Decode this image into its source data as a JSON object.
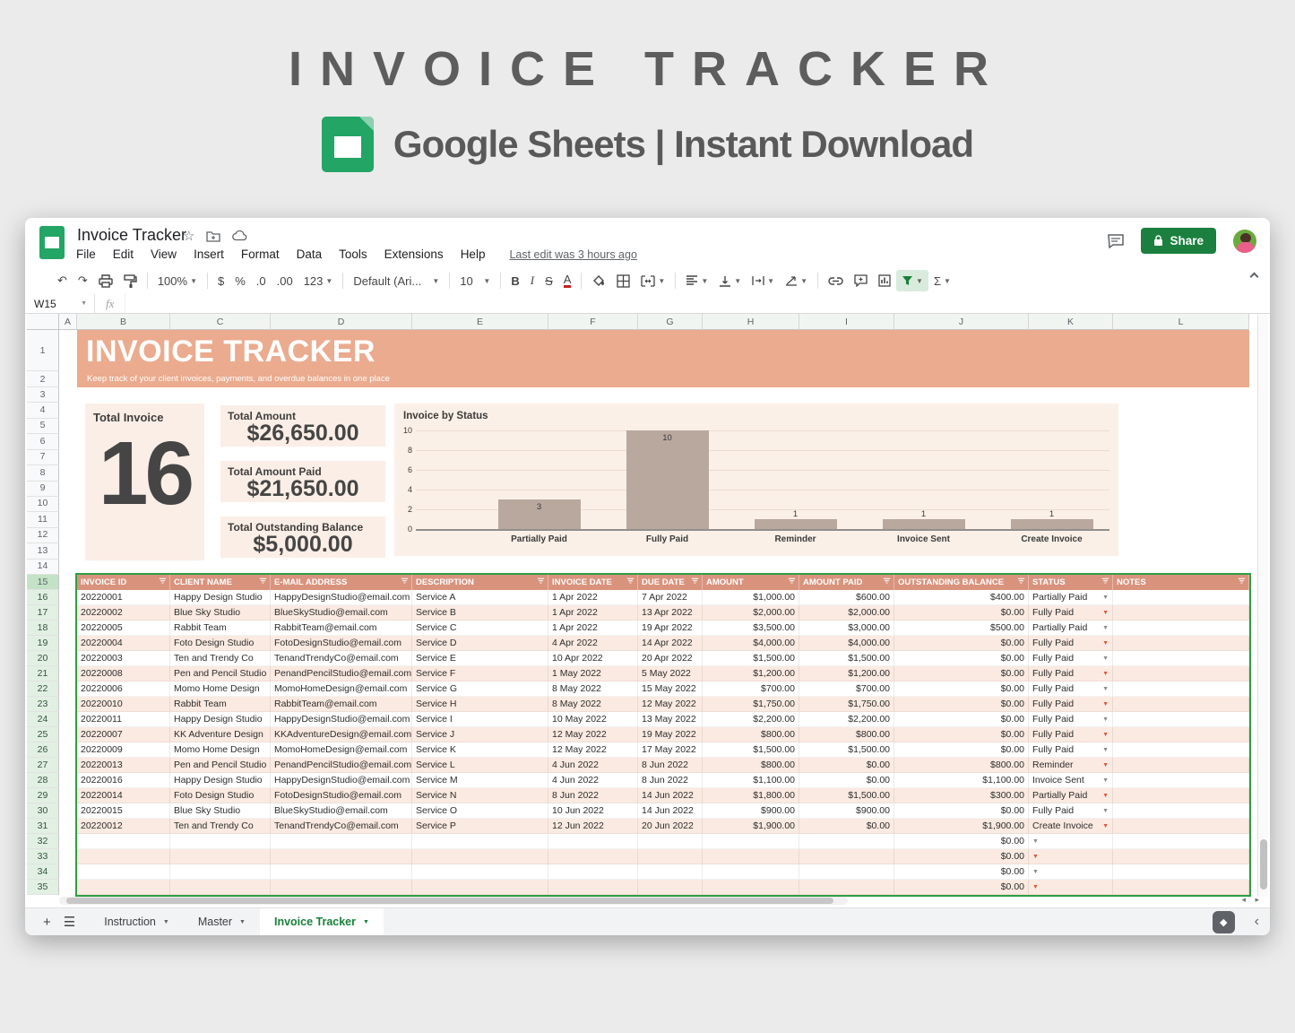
{
  "page_header": {
    "title": "INVOICE TRACKER",
    "subtitle": "Google Sheets | Instant Download"
  },
  "colors": {
    "banner_salmon": "#ebab8e",
    "table_header_salmon": "#d9937d",
    "row_stripe_peach": "#fbeae1",
    "panel_peach": "#fbeee6",
    "bar_taupe": "#b9a89e",
    "share_green": "#1b803f",
    "sheets_green": "#23a566",
    "active_tab_green": "#188038",
    "range_border_green": "#2f9e44",
    "stripe_arrow_orange": "#d9593d"
  },
  "window": {
    "doc_title": "Invoice Tracker",
    "menu_items": [
      "File",
      "Edit",
      "View",
      "Insert",
      "Format",
      "Data",
      "Tools",
      "Extensions",
      "Help"
    ],
    "last_edit": "Last edit was 3 hours ago",
    "share_label": "Share",
    "toolbar": {
      "zoom": "100%",
      "currency": "$",
      "percent": "%",
      "decrease_decimal": ".0",
      "increase_decimal": ".00",
      "more_formats": "123",
      "font": "Default (Ari...",
      "font_size": "10",
      "bold": "B",
      "italic": "I",
      "strikethrough": "S",
      "text_color": "A",
      "sum": "Σ"
    },
    "formula_bar": {
      "cell_ref": "W15",
      "fx_label": "fx"
    }
  },
  "sheet": {
    "column_letters": [
      "A",
      "B",
      "C",
      "D",
      "E",
      "F",
      "G",
      "H",
      "I",
      "J",
      "K",
      "L"
    ],
    "row_numbers": {
      "first": 1,
      "last": 35
    },
    "banner": {
      "title": "INVOICE TRACKER",
      "subtitle": "Keep track of your client invoices, payments, and overdue balances in one place"
    },
    "summary": {
      "total_invoice_label": "Total Invoice",
      "total_invoice_value": "16",
      "cards": [
        {
          "label": "Total Amount",
          "value": "$26,650.00"
        },
        {
          "label": "Total Amount Paid",
          "value": "$21,650.00"
        },
        {
          "label": "Total Outstanding Balance",
          "value": "$5,000.00"
        }
      ]
    },
    "table": {
      "headers": [
        "INVOICE ID",
        "CLIENT NAME",
        "E-MAIL ADDRESS",
        "DESCRIPTION",
        "INVOICE DATE",
        "DUE DATE",
        "AMOUNT",
        "AMOUNT PAID",
        "OUTSTANDING BALANCE",
        "STATUS",
        "NOTES"
      ],
      "rows": [
        {
          "id": "20220001",
          "client": "Happy Design Studio",
          "email": "HappyDesignStudio@email.com",
          "desc": "Service A",
          "invoice_date": "1 Apr 2022",
          "due_date": "7 Apr 2022",
          "amount": "$1,000.00",
          "paid": "$600.00",
          "balance": "$400.00",
          "status": "Partially Paid",
          "notes": ""
        },
        {
          "id": "20220002",
          "client": "Blue Sky Studio",
          "email": "BlueSkyStudio@email.com",
          "desc": "Service B",
          "invoice_date": "1 Apr 2022",
          "due_date": "13 Apr 2022",
          "amount": "$2,000.00",
          "paid": "$2,000.00",
          "balance": "$0.00",
          "status": "Fully Paid",
          "notes": ""
        },
        {
          "id": "20220005",
          "client": "Rabbit Team",
          "email": "RabbitTeam@email.com",
          "desc": "Service C",
          "invoice_date": "1 Apr 2022",
          "due_date": "19 Apr 2022",
          "amount": "$3,500.00",
          "paid": "$3,000.00",
          "balance": "$500.00",
          "status": "Partially Paid",
          "notes": ""
        },
        {
          "id": "20220004",
          "client": "Foto Design Studio",
          "email": "FotoDesignStudio@email.com",
          "desc": "Service D",
          "invoice_date": "4 Apr 2022",
          "due_date": "14 Apr 2022",
          "amount": "$4,000.00",
          "paid": "$4,000.00",
          "balance": "$0.00",
          "status": "Fully Paid",
          "notes": ""
        },
        {
          "id": "20220003",
          "client": "Ten and Trendy Co",
          "email": "TenandTrendyCo@email.com",
          "desc": "Service E",
          "invoice_date": "10 Apr 2022",
          "due_date": "20 Apr 2022",
          "amount": "$1,500.00",
          "paid": "$1,500.00",
          "balance": "$0.00",
          "status": "Fully Paid",
          "notes": ""
        },
        {
          "id": "20220008",
          "client": "Pen and Pencil Studio",
          "email": "PenandPencilStudio@email.com",
          "desc": "Service F",
          "invoice_date": "1 May 2022",
          "due_date": "5 May 2022",
          "amount": "$1,200.00",
          "paid": "$1,200.00",
          "balance": "$0.00",
          "status": "Fully Paid",
          "notes": ""
        },
        {
          "id": "20220006",
          "client": "Momo Home Design",
          "email": "MomoHomeDesign@email.com",
          "desc": "Service G",
          "invoice_date": "8 May 2022",
          "due_date": "15 May 2022",
          "amount": "$700.00",
          "paid": "$700.00",
          "balance": "$0.00",
          "status": "Fully Paid",
          "notes": ""
        },
        {
          "id": "20220010",
          "client": "Rabbit Team",
          "email": "RabbitTeam@email.com",
          "desc": "Service H",
          "invoice_date": "8 May 2022",
          "due_date": "12 May 2022",
          "amount": "$1,750.00",
          "paid": "$1,750.00",
          "balance": "$0.00",
          "status": "Fully Paid",
          "notes": ""
        },
        {
          "id": "20220011",
          "client": "Happy Design Studio",
          "email": "HappyDesignStudio@email.com",
          "desc": "Service I",
          "invoice_date": "10 May 2022",
          "due_date": "13 May 2022",
          "amount": "$2,200.00",
          "paid": "$2,200.00",
          "balance": "$0.00",
          "status": "Fully Paid",
          "notes": ""
        },
        {
          "id": "20220007",
          "client": "KK Adventure Design",
          "email": "KKAdventureDesign@email.com",
          "desc": "Service J",
          "invoice_date": "12 May 2022",
          "due_date": "19 May 2022",
          "amount": "$800.00",
          "paid": "$800.00",
          "balance": "$0.00",
          "status": "Fully Paid",
          "notes": ""
        },
        {
          "id": "20220009",
          "client": "Momo Home Design",
          "email": "MomoHomeDesign@email.com",
          "desc": "Service K",
          "invoice_date": "12 May 2022",
          "due_date": "17 May 2022",
          "amount": "$1,500.00",
          "paid": "$1,500.00",
          "balance": "$0.00",
          "status": "Fully Paid",
          "notes": ""
        },
        {
          "id": "20220013",
          "client": "Pen and Pencil Studio",
          "email": "PenandPencilStudio@email.com",
          "desc": "Service L",
          "invoice_date": "4 Jun 2022",
          "due_date": "8 Jun 2022",
          "amount": "$800.00",
          "paid": "$0.00",
          "balance": "$800.00",
          "status": "Reminder",
          "notes": ""
        },
        {
          "id": "20220016",
          "client": "Happy Design Studio",
          "email": "HappyDesignStudio@email.com",
          "desc": "Service M",
          "invoice_date": "4 Jun 2022",
          "due_date": "8 Jun 2022",
          "amount": "$1,100.00",
          "paid": "$0.00",
          "balance": "$1,100.00",
          "status": "Invoice Sent",
          "notes": ""
        },
        {
          "id": "20220014",
          "client": "Foto Design Studio",
          "email": "FotoDesignStudio@email.com",
          "desc": "Service N",
          "invoice_date": "8 Jun 2022",
          "due_date": "14 Jun 2022",
          "amount": "$1,800.00",
          "paid": "$1,500.00",
          "balance": "$300.00",
          "status": "Partially Paid",
          "notes": ""
        },
        {
          "id": "20220015",
          "client": "Blue Sky Studio",
          "email": "BlueSkyStudio@email.com",
          "desc": "Service O",
          "invoice_date": "10 Jun 2022",
          "due_date": "14 Jun 2022",
          "amount": "$900.00",
          "paid": "$900.00",
          "balance": "$0.00",
          "status": "Fully Paid",
          "notes": ""
        },
        {
          "id": "20220012",
          "client": "Ten and Trendy Co",
          "email": "TenandTrendyCo@email.com",
          "desc": "Service P",
          "invoice_date": "12 Jun 2022",
          "due_date": "20 Jun 2022",
          "amount": "$1,900.00",
          "paid": "$0.00",
          "balance": "$1,900.00",
          "status": "Create Invoice",
          "notes": ""
        }
      ],
      "empty_rows": [
        {
          "balance": "$0.00"
        },
        {
          "balance": "$0.00"
        },
        {
          "balance": "$0.00"
        },
        {
          "balance": "$0.00"
        }
      ]
    },
    "tabs": [
      {
        "label": "Instruction",
        "active": false
      },
      {
        "label": "Master",
        "active": false
      },
      {
        "label": "Invoice Tracker",
        "active": true
      }
    ]
  },
  "chart_data": {
    "type": "bar",
    "title": "Invoice by Status",
    "categories": [
      "Partially Paid",
      "Fully Paid",
      "Reminder",
      "Invoice Sent",
      "Create Invoice"
    ],
    "values": [
      3,
      10,
      1,
      1,
      1
    ],
    "ylim": [
      0,
      10
    ],
    "yticks": [
      0,
      2,
      4,
      6,
      8,
      10
    ],
    "grid": true,
    "bar_color": "#b9a89e",
    "xlabel": "",
    "ylabel": ""
  }
}
